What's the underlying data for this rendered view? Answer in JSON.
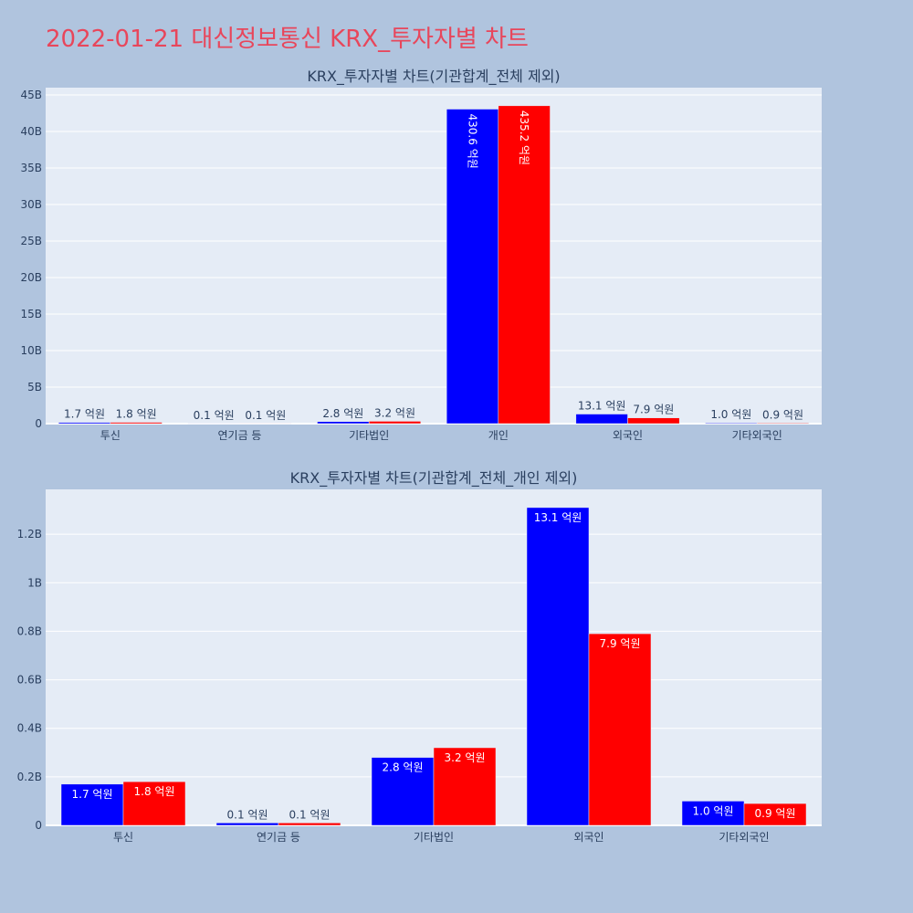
{
  "page": {
    "title": "2022-01-21 대신정보통신 KRX_투자자별 차트",
    "title_color": "#e8465b",
    "background": "#b0c4de",
    "plot_background": "#e5ecf6"
  },
  "chart_data": [
    {
      "type": "bar",
      "title": "KRX_투자자별 차트(기관합계_전체 제외)",
      "categories": [
        "투신",
        "연기금 등",
        "기타법인",
        "개인",
        "외국인",
        "기타외국인"
      ],
      "series": [
        {
          "color": "#0000ff",
          "values": [
            170000000,
            10000000,
            280000000,
            43060000000,
            1310000000,
            100000000
          ],
          "labels": [
            "1.7 억원",
            "0.1 억원",
            "2.8 억원",
            "430.6 억원",
            "13.1 억원",
            "1.0 억원"
          ]
        },
        {
          "color": "#ff0000",
          "values": [
            180000000,
            10000000,
            320000000,
            43520000000,
            790000000,
            90000000
          ],
          "labels": [
            "1.8 억원",
            "0.1 억원",
            "3.2 억원",
            "435.2 억원",
            "7.9 억원",
            "0.9 억원"
          ]
        }
      ],
      "ylim": [
        0,
        46000000000
      ],
      "yticks": [
        0,
        5000000000,
        10000000000,
        15000000000,
        20000000000,
        25000000000,
        30000000000,
        35000000000,
        40000000000,
        45000000000
      ],
      "ytick_labels": [
        "0",
        "5B",
        "10B",
        "15B",
        "20B",
        "25B",
        "30B",
        "35B",
        "40B",
        "45B"
      ],
      "grid": true,
      "legend": "none"
    },
    {
      "type": "bar",
      "title": "KRX_투자자별 차트(기관합계_전체_개인 제외)",
      "categories": [
        "투신",
        "연기금 등",
        "기타법인",
        "외국인",
        "기타외국인"
      ],
      "series": [
        {
          "color": "#0000ff",
          "values": [
            170000000,
            10000000,
            280000000,
            1310000000,
            100000000
          ],
          "labels": [
            "1.7 억원",
            "0.1 억원",
            "2.8 억원",
            "13.1 억원",
            "1.0 억원"
          ]
        },
        {
          "color": "#ff0000",
          "values": [
            180000000,
            10000000,
            320000000,
            790000000,
            90000000
          ],
          "labels": [
            "1.8 억원",
            "0.1 억원",
            "3.2 억원",
            "7.9 억원",
            "0.9 억원"
          ]
        }
      ],
      "ylim": [
        0,
        1385000000
      ],
      "yticks": [
        0,
        200000000,
        400000000,
        600000000,
        800000000,
        1000000000,
        1200000000
      ],
      "ytick_labels": [
        "0",
        "0.2B",
        "0.4B",
        "0.6B",
        "0.8B",
        "1B",
        "1.2B"
      ],
      "grid": true,
      "legend": "none"
    }
  ]
}
